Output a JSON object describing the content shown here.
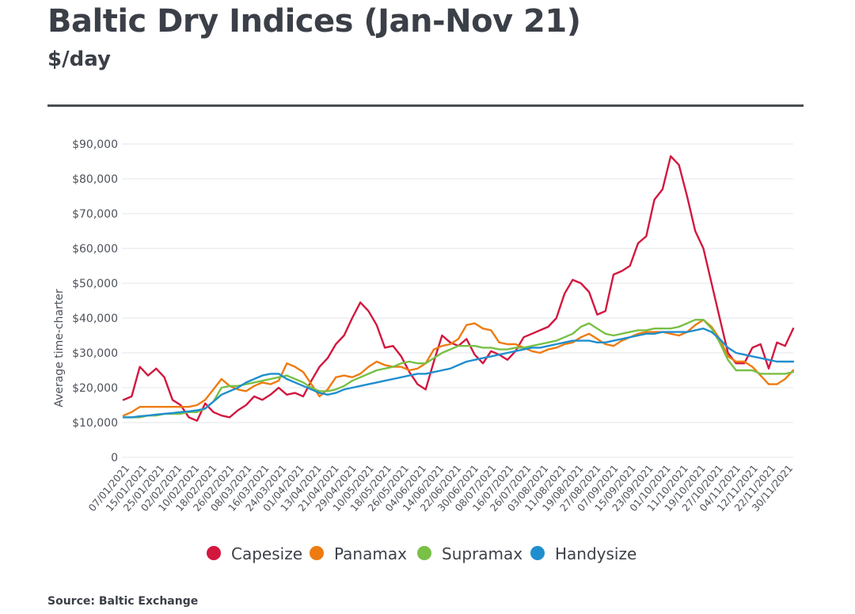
{
  "title": "Baltic Dry Indices (Jan-Nov 21)",
  "subtitle": "$/day",
  "source": "Source: Baltic Exchange",
  "chart_data": {
    "type": "line",
    "ylabel": "Average time-charter",
    "ylim": [
      0,
      90000
    ],
    "yticks": [
      0,
      10000,
      20000,
      30000,
      40000,
      50000,
      60000,
      70000,
      80000,
      90000
    ],
    "ytick_labels": [
      "0",
      "$10,000",
      "$20,000",
      "$30,000",
      "$40,000",
      "$50,000",
      "$60,000",
      "$70,000",
      "$80,000",
      "$90,000"
    ],
    "x_tick_labels": [
      "07/01/2021",
      "15/01/2021",
      "25/01/2021",
      "02/02/2021",
      "10/02/2021",
      "18/02/2021",
      "26/02/2021",
      "08/03/2021",
      "16/03/2021",
      "24/03/2021",
      "01/04/2021",
      "13/04/2021",
      "21/04/2021",
      "29/04/2021",
      "10/05/2021",
      "18/05/2021",
      "26/05/2021",
      "04/06/2021",
      "14/06/2021",
      "22/06/2021",
      "30/06/2021",
      "08/07/2021",
      "16/07/2021",
      "26/07/2021",
      "03/08/2021",
      "11/08/2021",
      "19/08/2021",
      "27/08/2021",
      "07/09/2021",
      "15/09/2021",
      "23/09/2021",
      "01/10/2021",
      "11/10/2021",
      "19/10/2021",
      "27/10/2021",
      "04/11/2021",
      "12/11/2021",
      "22/11/2021",
      "30/11/2021"
    ],
    "grid": true,
    "legend_position": "bottom",
    "series": [
      {
        "name": "Capesize",
        "color": "#d3173f",
        "values": [
          16500,
          17500,
          26000,
          23500,
          25500,
          23000,
          16500,
          15000,
          11500,
          10500,
          15500,
          13000,
          12000,
          11500,
          13500,
          15000,
          17500,
          16500,
          18000,
          20000,
          18000,
          18500,
          17500,
          22000,
          26000,
          28500,
          32500,
          35000,
          40000,
          44500,
          42000,
          38000,
          31500,
          32000,
          29000,
          24500,
          21000,
          19500,
          27500,
          35000,
          33000,
          32000,
          34000,
          29500,
          27000,
          30500,
          29500,
          28000,
          30500,
          34500,
          35500,
          36500,
          37500,
          40000,
          47000,
          51000,
          50000,
          47500,
          41000,
          42000,
          52500,
          53500,
          55000,
          61500,
          63500,
          74000,
          77000,
          86500,
          84000,
          75000,
          65000,
          60000,
          50000,
          40000,
          30000,
          27000,
          27000,
          31500,
          32500,
          25500,
          33000,
          32000,
          37000
        ]
      },
      {
        "name": "Panamax",
        "color": "#ee7b12",
        "values": [
          12000,
          13000,
          14500,
          14500,
          14500,
          14500,
          14500,
          14500,
          14500,
          15000,
          16500,
          19500,
          22500,
          20500,
          19500,
          19000,
          20500,
          21500,
          21000,
          22000,
          27000,
          26000,
          24500,
          21000,
          17500,
          19500,
          23000,
          23500,
          23000,
          24000,
          26000,
          27500,
          26500,
          26000,
          26000,
          25000,
          25500,
          27000,
          31000,
          32000,
          32500,
          34000,
          38000,
          38500,
          37000,
          36500,
          33000,
          32500,
          32500,
          31500,
          30500,
          30000,
          31000,
          31500,
          32500,
          33000,
          34500,
          35500,
          34000,
          32500,
          32000,
          33500,
          34500,
          35500,
          36000,
          36000,
          36000,
          35500,
          35000,
          36000,
          38000,
          39500,
          37500,
          34000,
          29000,
          27500,
          27500,
          26000,
          23500,
          21000,
          21000,
          22500,
          25000
        ]
      },
      {
        "name": "Supramax",
        "color": "#78c046",
        "values": [
          11500,
          11500,
          11500,
          12000,
          12000,
          12500,
          12500,
          12500,
          13000,
          13000,
          14000,
          16000,
          20000,
          20500,
          20500,
          21000,
          21500,
          22000,
          22500,
          23000,
          23500,
          22500,
          21500,
          20000,
          19000,
          19000,
          19500,
          20500,
          22000,
          23000,
          24000,
          25000,
          25500,
          26000,
          27000,
          27500,
          27000,
          27000,
          28500,
          30000,
          31000,
          32000,
          32000,
          32000,
          31500,
          31500,
          31000,
          31000,
          31500,
          31500,
          32000,
          32500,
          33000,
          33500,
          34500,
          35500,
          37500,
          38500,
          37000,
          35500,
          35000,
          35500,
          36000,
          36500,
          36500,
          37000,
          37000,
          37000,
          37500,
          38500,
          39500,
          39500,
          37000,
          33000,
          28000,
          25000,
          25000,
          25000,
          24000,
          24000,
          24000,
          24000,
          24500
        ]
      },
      {
        "name": "Handysize",
        "color": "#1f8ecf",
        "values": [
          11500,
          11500,
          11800,
          12000,
          12300,
          12500,
          12700,
          13000,
          13200,
          13500,
          14000,
          16000,
          18000,
          19000,
          20000,
          21500,
          22500,
          23500,
          24000,
          24000,
          22500,
          21500,
          20500,
          19500,
          18500,
          18000,
          18500,
          19500,
          20000,
          20500,
          21000,
          21500,
          22000,
          22500,
          23000,
          23500,
          24000,
          24000,
          24500,
          25000,
          25500,
          26500,
          27500,
          28000,
          28500,
          29000,
          29500,
          30000,
          30500,
          31000,
          31500,
          31500,
          32000,
          32500,
          33000,
          33500,
          33500,
          33500,
          33000,
          33000,
          33500,
          34000,
          34500,
          35000,
          35500,
          35500,
          36000,
          36000,
          36000,
          36000,
          36500,
          37000,
          36000,
          34000,
          31500,
          30000,
          29500,
          29000,
          28500,
          28000,
          27500,
          27500,
          27500
        ]
      }
    ]
  }
}
